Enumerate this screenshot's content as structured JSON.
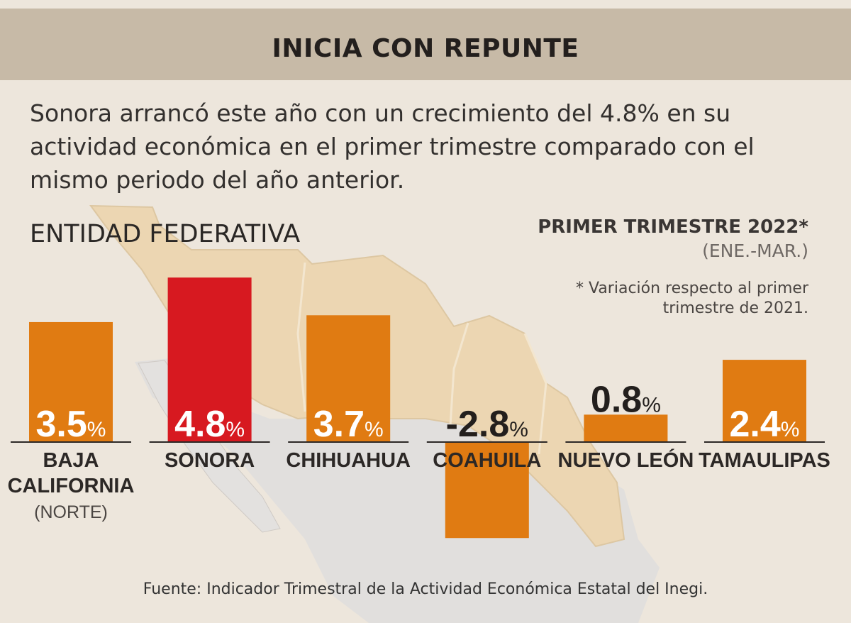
{
  "header": {
    "title": "INICIA CON REPUNTE"
  },
  "intro": "Sonora arrancó este año con un crecimiento del 4.8% en su actividad económica en el primer trimestre comparado con el mismo periodo del año anterior.",
  "labels": {
    "entity_heading": "ENTIDAD FEDERATIVA",
    "period_title": "PRIMER TRIMESTRE 2022*",
    "period_sub": "(ENE.-MAR.)",
    "footnote": "* Variación respecto al primer trimestre de 2021.",
    "source": "Fuente: Indicador Trimestral de la Actividad Económica Estatal del Inegi."
  },
  "colors": {
    "banner": "#c7baa7",
    "background": "#ede6dc",
    "bar": "#e07b12",
    "highlight_bar": "#d71920",
    "map_north": "#ecd6b2",
    "map_rest": "#e1dfdd"
  },
  "chart_data": {
    "type": "bar",
    "title": "INICIA CON REPUNTE",
    "unit": "%",
    "categories": [
      "BAJA CALIFORNIA",
      "SONORA",
      "CHIHUAHUA",
      "COAHUILA",
      "NUEVO LEÓN",
      "TAMAULIPAS"
    ],
    "category_notes": [
      "(NORTE)",
      "",
      "",
      "",
      "",
      ""
    ],
    "values": [
      3.5,
      4.8,
      3.7,
      -2.8,
      0.8,
      2.4
    ],
    "value_labels": [
      "3.5",
      "4.8",
      "3.7",
      "-2.8",
      "0.8",
      "2.4"
    ],
    "highlight": "SONORA",
    "grid": false,
    "legend": "none"
  }
}
